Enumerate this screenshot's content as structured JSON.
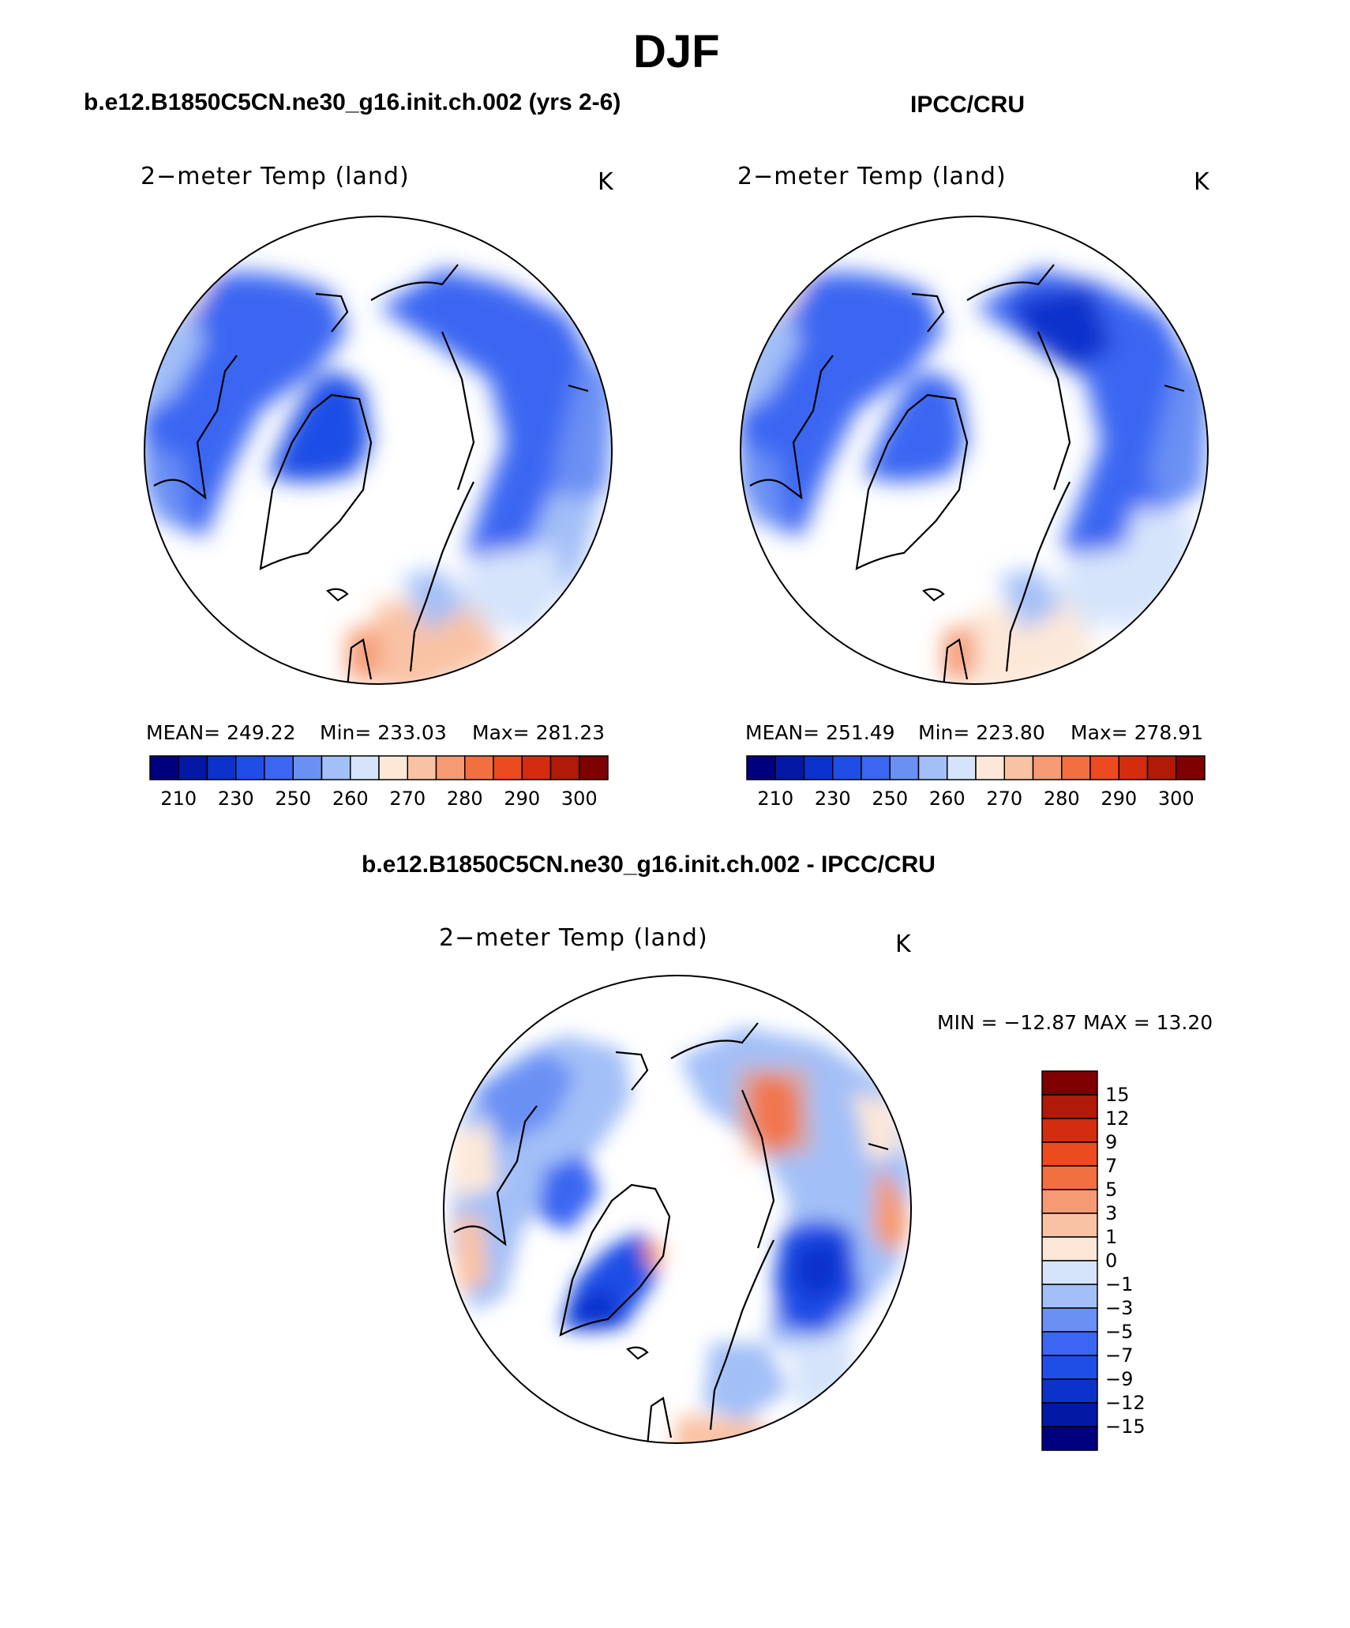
{
  "figure": {
    "title": "DJF",
    "left_subtitle": "b.e12.B1850C5CN.ne30_g16.init.ch.002 (yrs 2-6)",
    "right_subtitle": "IPCC/CRU",
    "diff_subtitle": "b.e12.B1850C5CN.ne30_g16.init.ch.002 - IPCC/CRU"
  },
  "panels": {
    "model": {
      "variable": "2−meter Temp (land)",
      "units": "K",
      "stats": {
        "mean": "MEAN=  249.22",
        "min": "Min=  233.03",
        "max": "Max=  281.23"
      }
    },
    "obs": {
      "variable": "2−meter Temp (land)",
      "units": "K",
      "stats": {
        "mean": "MEAN=  251.49",
        "min": "Min=  223.80",
        "max": "Max=  278.91"
      }
    },
    "diff": {
      "variable": "2−meter Temp (land)",
      "units": "K",
      "minmax": "MIN =  −12.87  MAX =    13.20"
    }
  },
  "colorbar_abs": {
    "colors": [
      "#00007f",
      "#0319a6",
      "#0b33cc",
      "#1f4ee6",
      "#3a66f2",
      "#6b90f4",
      "#a3bff7",
      "#d6e4fb",
      "#fde8d8",
      "#f9c2a4",
      "#f59a72",
      "#f2703f",
      "#ec4a1f",
      "#d42c0f",
      "#b01a08",
      "#7f0000"
    ],
    "labels": [
      "210",
      "230",
      "250",
      "260",
      "270",
      "280",
      "290",
      "300"
    ]
  },
  "colorbar_diff": {
    "colors": [
      "#7f0000",
      "#b01a08",
      "#d42c0f",
      "#ec4a1f",
      "#f2703f",
      "#f59a72",
      "#f9c2a4",
      "#fde8d8",
      "#d6e4fb",
      "#a3bff7",
      "#6b90f4",
      "#3a66f2",
      "#1f4ee6",
      "#0b33cc",
      "#0319a6",
      "#00007f"
    ],
    "labels": [
      "15",
      "12",
      "9",
      "7",
      "5",
      "3",
      "1",
      "0",
      "−1",
      "−3",
      "−5",
      "−7",
      "−9",
      "−12",
      "−15"
    ]
  }
}
